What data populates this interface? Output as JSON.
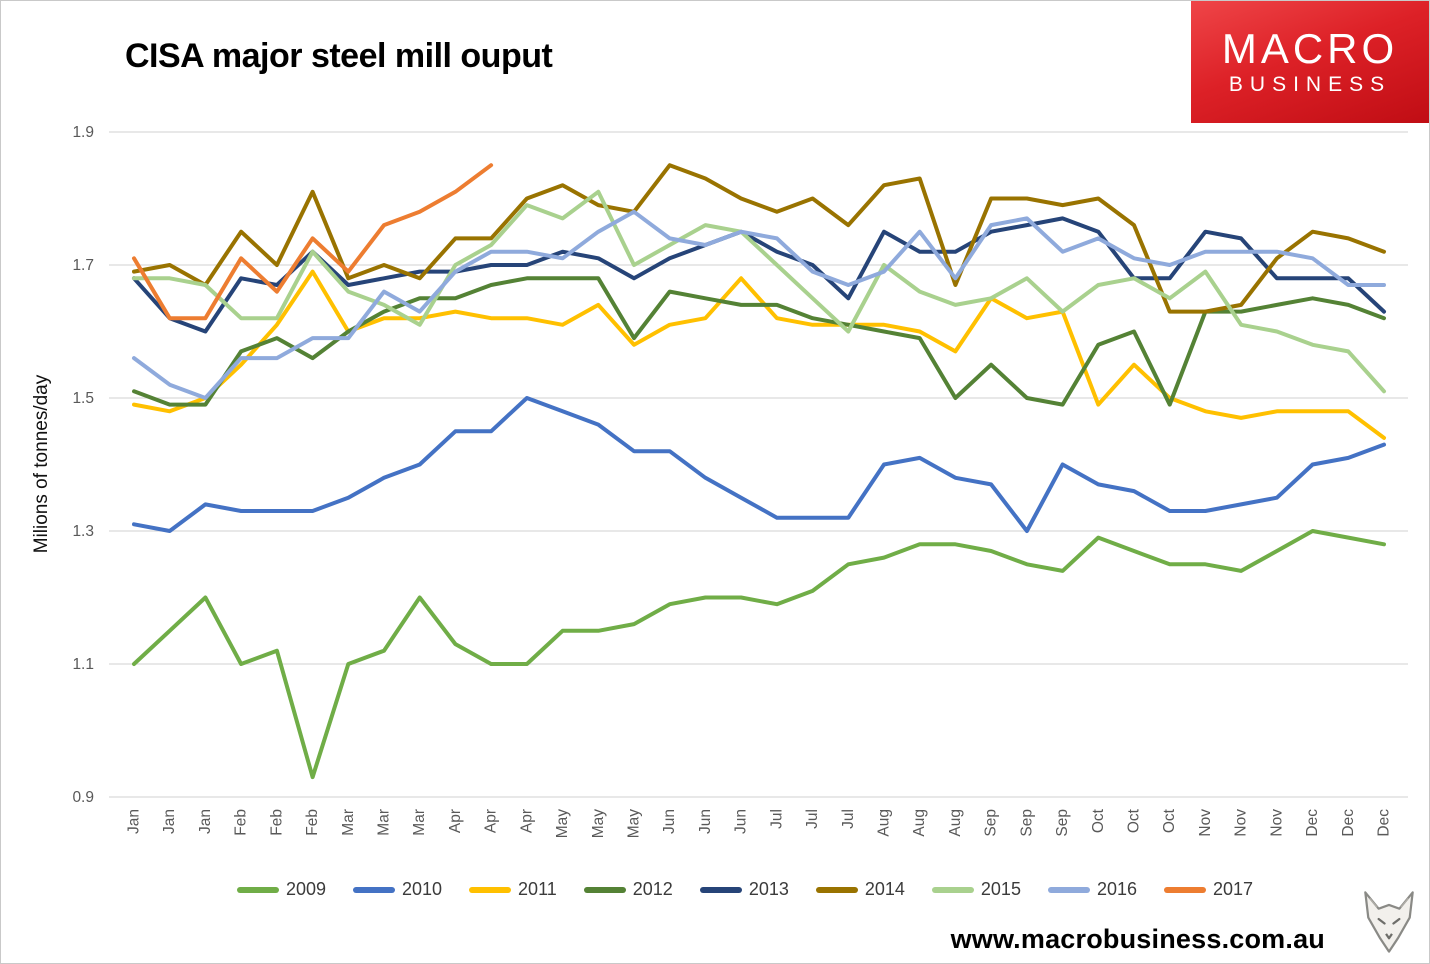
{
  "header": {
    "title": "CISA major steel mill ouput"
  },
  "logo": {
    "line1": "MACRO",
    "line2": "BUSINESS",
    "bg_color": "#D6181F"
  },
  "footer": {
    "url": "www.macrobusiness.com.au"
  },
  "chart_data": {
    "type": "line",
    "title": "CISA major steel mill ouput",
    "xlabel": "",
    "ylabel": "Milions of tonnes/day",
    "ylim": [
      0.9,
      1.9
    ],
    "yticks": [
      0.9,
      1.1,
      1.3,
      1.5,
      1.7,
      1.9
    ],
    "grid": "horizontal",
    "grid_color": "#D9D9D9",
    "tick_color": "#595959",
    "legend_position": "bottom",
    "x_tick_rotation": 90,
    "categories": [
      "Jan",
      "Jan",
      "Jan",
      "Feb",
      "Feb",
      "Feb",
      "Mar",
      "Mar",
      "Mar",
      "Apr",
      "Apr",
      "Apr",
      "May",
      "May",
      "May",
      "Jun",
      "Jun",
      "Jun",
      "Jul",
      "Jul",
      "Jul",
      "Aug",
      "Aug",
      "Aug",
      "Sep",
      "Sep",
      "Sep",
      "Oct",
      "Oct",
      "Oct",
      "Nov",
      "Nov",
      "Nov",
      "Dec",
      "Dec",
      "Dec"
    ],
    "series": [
      {
        "name": "2009",
        "color": "#70AD47",
        "values": [
          1.1,
          1.15,
          1.2,
          1.1,
          1.12,
          0.93,
          1.1,
          1.12,
          1.2,
          1.13,
          1.1,
          1.1,
          1.15,
          1.15,
          1.16,
          1.19,
          1.2,
          1.2,
          1.19,
          1.21,
          1.25,
          1.26,
          1.28,
          1.28,
          1.27,
          1.25,
          1.24,
          1.29,
          1.27,
          1.25,
          1.25,
          1.24,
          1.27,
          1.3,
          1.29,
          1.28
        ]
      },
      {
        "name": "2010",
        "color": "#4472C4",
        "values": [
          1.31,
          1.3,
          1.34,
          1.33,
          1.33,
          1.33,
          1.35,
          1.38,
          1.4,
          1.45,
          1.45,
          1.5,
          1.48,
          1.46,
          1.42,
          1.42,
          1.38,
          1.35,
          1.32,
          1.32,
          1.32,
          1.4,
          1.41,
          1.38,
          1.37,
          1.3,
          1.4,
          1.37,
          1.36,
          1.33,
          1.33,
          1.34,
          1.35,
          1.4,
          1.41,
          1.43
        ]
      },
      {
        "name": "2011",
        "color": "#FFC000",
        "values": [
          1.49,
          1.48,
          1.5,
          1.55,
          1.61,
          1.69,
          1.6,
          1.62,
          1.62,
          1.63,
          1.62,
          1.62,
          1.61,
          1.64,
          1.58,
          1.61,
          1.62,
          1.68,
          1.62,
          1.61,
          1.61,
          1.61,
          1.6,
          1.57,
          1.65,
          1.62,
          1.63,
          1.49,
          1.55,
          1.5,
          1.48,
          1.47,
          1.48,
          1.48,
          1.48,
          1.44
        ]
      },
      {
        "name": "2012",
        "color": "#548235",
        "values": [
          1.51,
          1.49,
          1.49,
          1.57,
          1.59,
          1.56,
          1.6,
          1.63,
          1.65,
          1.65,
          1.67,
          1.68,
          1.68,
          1.68,
          1.59,
          1.66,
          1.65,
          1.64,
          1.64,
          1.62,
          1.61,
          1.6,
          1.59,
          1.5,
          1.55,
          1.5,
          1.49,
          1.58,
          1.6,
          1.49,
          1.63,
          1.63,
          1.64,
          1.65,
          1.64,
          1.62
        ]
      },
      {
        "name": "2013",
        "color": "#264478",
        "values": [
          1.68,
          1.62,
          1.6,
          1.68,
          1.67,
          1.72,
          1.67,
          1.68,
          1.69,
          1.69,
          1.7,
          1.7,
          1.72,
          1.71,
          1.68,
          1.71,
          1.73,
          1.75,
          1.72,
          1.7,
          1.65,
          1.75,
          1.72,
          1.72,
          1.75,
          1.76,
          1.77,
          1.75,
          1.68,
          1.68,
          1.75,
          1.74,
          1.68,
          1.68,
          1.68,
          1.63
        ]
      },
      {
        "name": "2014",
        "color": "#997300",
        "values": [
          1.69,
          1.7,
          1.67,
          1.75,
          1.7,
          1.81,
          1.68,
          1.7,
          1.68,
          1.74,
          1.74,
          1.8,
          1.82,
          1.79,
          1.78,
          1.85,
          1.83,
          1.8,
          1.78,
          1.8,
          1.76,
          1.82,
          1.83,
          1.67,
          1.8,
          1.8,
          1.79,
          1.8,
          1.76,
          1.63,
          1.63,
          1.64,
          1.71,
          1.75,
          1.74,
          1.72
        ]
      },
      {
        "name": "2015",
        "color": "#A9D18E",
        "values": [
          1.68,
          1.68,
          1.67,
          1.62,
          1.62,
          1.72,
          1.66,
          1.64,
          1.61,
          1.7,
          1.73,
          1.79,
          1.77,
          1.81,
          1.7,
          1.73,
          1.76,
          1.75,
          1.7,
          1.65,
          1.6,
          1.7,
          1.66,
          1.64,
          1.65,
          1.68,
          1.63,
          1.67,
          1.68,
          1.65,
          1.69,
          1.61,
          1.6,
          1.58,
          1.57,
          1.51
        ]
      },
      {
        "name": "2016",
        "color": "#8FAADC",
        "values": [
          1.56,
          1.52,
          1.5,
          1.56,
          1.56,
          1.59,
          1.59,
          1.66,
          1.63,
          1.69,
          1.72,
          1.72,
          1.71,
          1.75,
          1.78,
          1.74,
          1.73,
          1.75,
          1.74,
          1.69,
          1.67,
          1.69,
          1.75,
          1.68,
          1.76,
          1.77,
          1.72,
          1.74,
          1.71,
          1.7,
          1.72,
          1.72,
          1.72,
          1.71,
          1.67,
          1.67
        ]
      },
      {
        "name": "2017",
        "color": "#ED7D31",
        "values": [
          1.71,
          1.62,
          1.62,
          1.71,
          1.66,
          1.74,
          1.69,
          1.76,
          1.78,
          1.81,
          1.85,
          null,
          null,
          null,
          null,
          null,
          null,
          null,
          null,
          null,
          null,
          null,
          null,
          null,
          null,
          null,
          null,
          null,
          null,
          null,
          null,
          null,
          null,
          null,
          null,
          null
        ]
      }
    ]
  }
}
